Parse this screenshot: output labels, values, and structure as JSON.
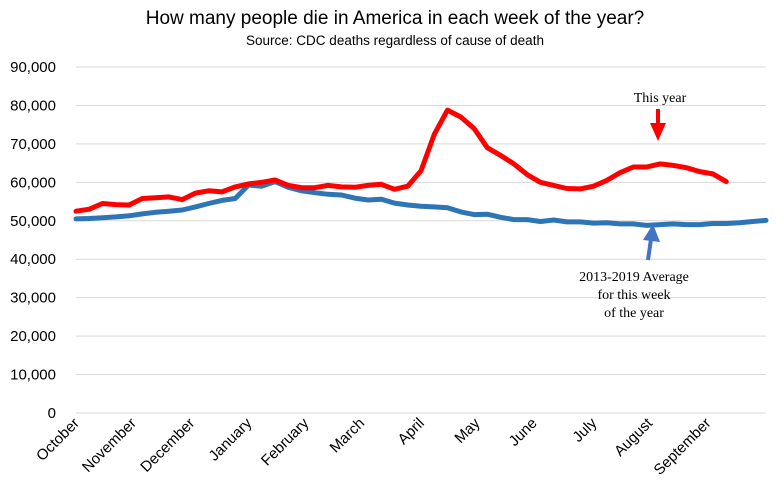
{
  "chart_data": {
    "type": "line",
    "title": "How many people die in America in each week of the year?",
    "subtitle": "Source: CDC deaths regardless of cause of death",
    "ylim": [
      0,
      90000
    ],
    "yticks": [
      "0",
      "10,000",
      "20,000",
      "30,000",
      "40,000",
      "50,000",
      "60,000",
      "70,000",
      "80,000",
      "90,000"
    ],
    "ytick_values": [
      0,
      10000,
      20000,
      30000,
      40000,
      50000,
      60000,
      70000,
      80000,
      90000
    ],
    "grid": true,
    "x_categories": [
      "October",
      "November",
      "December",
      "January",
      "February",
      "March",
      "April",
      "May",
      "June",
      "July",
      "August",
      "September"
    ],
    "x_category_weeks": [
      0,
      4.3,
      8.7,
      13,
      17.3,
      21.5,
      26,
      30.2,
      34.5,
      39,
      43.2,
      47.6
    ],
    "series": [
      {
        "name": "This year",
        "color": "#ff0000",
        "weeks": [
          0,
          1,
          2,
          3,
          4,
          5,
          6,
          7,
          8,
          9,
          10,
          11,
          12,
          13,
          14,
          15,
          16,
          17,
          18,
          19,
          20,
          21,
          22,
          23,
          24,
          25,
          26,
          27,
          28,
          29,
          30,
          31,
          32,
          33,
          34,
          35,
          36,
          37,
          38,
          39,
          40,
          41,
          42,
          43,
          44,
          45,
          46,
          47,
          48,
          49
        ],
        "values": [
          52500,
          53000,
          54500,
          54200,
          54100,
          55800,
          56000,
          56200,
          55500,
          57200,
          57800,
          57500,
          58800,
          59600,
          60000,
          60600,
          59200,
          58600,
          58600,
          59200,
          58800,
          58700,
          59200,
          59500,
          58200,
          59000,
          63000,
          72500,
          78800,
          77000,
          74000,
          69000,
          67000,
          64800,
          62000,
          60000,
          59200,
          58400,
          58300,
          59000,
          60500,
          62500,
          64000,
          64000,
          64800,
          64400,
          63800,
          62800,
          62200,
          60200
        ]
      },
      {
        "name": "2013-2019 Average for this week of the year",
        "color": "#2e75b6",
        "weeks": [
          0,
          1,
          2,
          3,
          4,
          5,
          6,
          7,
          8,
          9,
          10,
          11,
          12,
          13,
          14,
          15,
          16,
          17,
          18,
          19,
          20,
          21,
          22,
          23,
          24,
          25,
          26,
          27,
          28,
          29,
          30,
          31,
          32,
          33,
          34,
          35,
          36,
          37,
          38,
          39,
          40,
          41,
          42,
          43,
          44,
          45,
          46,
          47,
          48,
          49,
          50,
          51,
          52
        ],
        "values": [
          50500,
          50600,
          50800,
          51000,
          51300,
          51800,
          52200,
          52500,
          52800,
          53600,
          54500,
          55300,
          55800,
          59300,
          59000,
          60200,
          58700,
          57800,
          57300,
          56900,
          56700,
          55900,
          55400,
          55600,
          54600,
          54100,
          53800,
          53600,
          53400,
          52300,
          51600,
          51700,
          50900,
          50300,
          50300,
          49800,
          50200,
          49700,
          49700,
          49400,
          49500,
          49200,
          49200,
          48800,
          49000,
          49200,
          49000,
          49000,
          49300,
          49300,
          49500,
          49800,
          50100
        ]
      }
    ],
    "annotations": [
      {
        "text": "This year",
        "target_series": 0
      },
      {
        "lines": [
          "2013-2019 Average",
          "for this week",
          "of the year"
        ],
        "target_series": 1
      }
    ]
  }
}
